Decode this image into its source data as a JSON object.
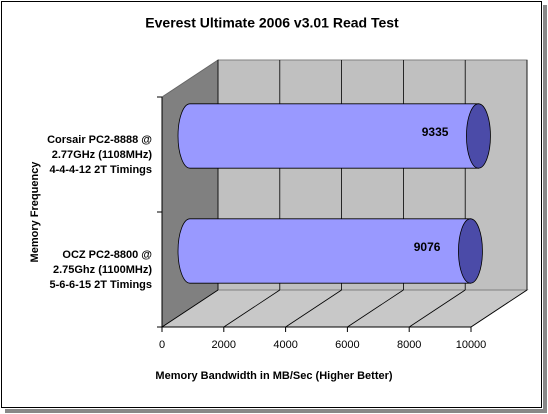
{
  "chart_data": {
    "type": "bar3d",
    "title": "Everest Ultimate 2006 v3.01 Read Test",
    "x_label": "Memory Bandwidth in MB/Sec (Higher Better)",
    "y_label": "Memory Frequency",
    "categories": [
      "Corsair PC2-8888 @\n2.77GHz (1108MHz)\n4-4-4-12 2T Timings",
      "OCZ PC2-8800 @\n2.75Ghz (1100MHz)\n5-6-6-15 2T Timings"
    ],
    "values": [
      9335,
      9076
    ],
    "color": "#9999ff",
    "xlim": [
      0,
      10000
    ],
    "xticks": [
      0,
      2000,
      4000,
      6000,
      8000,
      10000
    ],
    "grid": true
  }
}
